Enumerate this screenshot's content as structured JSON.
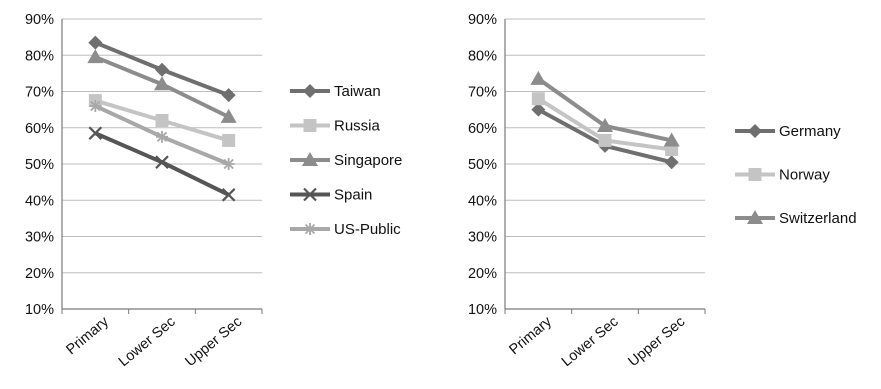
{
  "chart_data": [
    {
      "type": "line",
      "categories": [
        "Primary",
        "Lower Sec",
        "Upper Sec"
      ],
      "ylim": [
        0.1,
        0.9
      ],
      "yticks": [
        "10%",
        "20%",
        "30%",
        "40%",
        "50%",
        "60%",
        "70%",
        "80%",
        "90%"
      ],
      "grid": true,
      "legend_position": "right",
      "series": [
        {
          "name": "Taiwan",
          "values": [
            0.835,
            0.76,
            0.69
          ],
          "color": "#6f6f6f",
          "marker": "diamond"
        },
        {
          "name": "Russia",
          "values": [
            0.675,
            0.62,
            0.565
          ],
          "color": "#c4c4c4",
          "marker": "square"
        },
        {
          "name": "Singapore",
          "values": [
            0.795,
            0.72,
            0.63
          ],
          "color": "#8c8c8c",
          "marker": "triangle"
        },
        {
          "name": "Spain",
          "values": [
            0.585,
            0.505,
            0.415
          ],
          "color": "#555555",
          "marker": "x"
        },
        {
          "name": "US-Public",
          "values": [
            0.66,
            0.575,
            0.5
          ],
          "color": "#a8a8a8",
          "marker": "star"
        }
      ]
    },
    {
      "type": "line",
      "categories": [
        "Primary",
        "Lower Sec",
        "Upper Sec"
      ],
      "ylim": [
        0.1,
        0.9
      ],
      "yticks": [
        "10%",
        "20%",
        "30%",
        "40%",
        "50%",
        "60%",
        "70%",
        "80%",
        "90%"
      ],
      "grid": true,
      "legend_position": "right",
      "series": [
        {
          "name": "Germany",
          "values": [
            0.65,
            0.55,
            0.505
          ],
          "color": "#6f6f6f",
          "marker": "diamond"
        },
        {
          "name": "Norway",
          "values": [
            0.68,
            0.565,
            0.54
          ],
          "color": "#c4c4c4",
          "marker": "square"
        },
        {
          "name": "Switzerland",
          "values": [
            0.735,
            0.605,
            0.565
          ],
          "color": "#8c8c8c",
          "marker": "triangle"
        }
      ]
    }
  ]
}
